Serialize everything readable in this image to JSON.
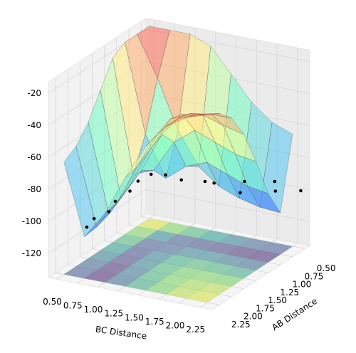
{
  "chart_data": {
    "type": "surface",
    "xlabel": "BC Distance",
    "ylabel": "AB Distance",
    "x": [
      0.5,
      0.75,
      1.0,
      1.25,
      1.5,
      1.75,
      2.0,
      2.25
    ],
    "y": [
      0.5,
      0.75,
      1.0,
      1.25,
      1.5,
      1.75,
      2.0,
      2.25
    ],
    "z": [
      [
        -15,
        -15,
        -15,
        -20,
        -35,
        -50,
        -60,
        -65
      ],
      [
        -15,
        -40,
        -70,
        -90,
        -100,
        -105,
        -108,
        -109
      ],
      [
        -15,
        -70,
        -95,
        -85,
        -80,
        -85,
        -90,
        -92
      ],
      [
        -20,
        -90,
        -85,
        -65,
        -55,
        -60,
        -65,
        -67
      ],
      [
        -35,
        -100,
        -80,
        -55,
        -40,
        -38,
        -42,
        -45
      ],
      [
        -50,
        -105,
        -85,
        -60,
        -38,
        -32,
        -30,
        -30
      ],
      [
        -60,
        -108,
        -90,
        -65,
        -42,
        -30,
        -25,
        -22
      ],
      [
        -65,
        -109,
        -92,
        -67,
        -45,
        -30,
        -22,
        -18
      ]
    ],
    "surface_colors": [
      "#3a3aff",
      "#46b4ff",
      "#78ffc0",
      "#ffff8c",
      "#ffa86a",
      "#ff4a4a"
    ],
    "contour_colors": [
      "#440154",
      "#3b528b",
      "#21918c",
      "#5ec962",
      "#fde725"
    ],
    "xlim": [
      0.4,
      2.4
    ],
    "ylim": [
      0.4,
      2.4
    ],
    "zlim": [
      -135,
      -13
    ],
    "xticks": [
      {
        "value": 0.5,
        "label": "0.50"
      },
      {
        "value": 0.75,
        "label": "0.75"
      },
      {
        "value": 1.0,
        "label": "1.00"
      },
      {
        "value": 1.25,
        "label": "1.25"
      },
      {
        "value": 1.5,
        "label": "1.50"
      },
      {
        "value": 1.75,
        "label": "1.75"
      },
      {
        "value": 2.0,
        "label": "2.00"
      },
      {
        "value": 2.25,
        "label": "2.25"
      }
    ],
    "yticks": [
      {
        "value": 0.5,
        "label": "0.50"
      },
      {
        "value": 0.75,
        "label": "0.75"
      },
      {
        "value": 1.0,
        "label": "1.00"
      },
      {
        "value": 1.25,
        "label": "1.25"
      },
      {
        "value": 1.5,
        "label": "1.50"
      },
      {
        "value": 1.75,
        "label": "1.75"
      },
      {
        "value": 2.0,
        "label": "2.00"
      },
      {
        "value": 2.25,
        "label": "2.25"
      }
    ],
    "zticks": [
      -120,
      -100,
      -80,
      -60,
      -40,
      -20
    ],
    "grid": true,
    "trajectory": {
      "color": "#000000",
      "x": [
        0.75,
        0.72,
        0.78,
        0.74,
        0.8,
        0.78,
        0.85,
        0.95,
        1.1,
        1.3,
        1.5,
        1.7,
        1.9,
        2.1,
        2.3,
        2.38
      ],
      "y": [
        2.2,
        2.0,
        1.8,
        1.6,
        1.4,
        1.2,
        1.05,
        0.92,
        0.85,
        0.7,
        0.85,
        0.65,
        0.9,
        0.6,
        0.95,
        0.55
      ],
      "z": [
        -104,
        -103,
        -102,
        -100,
        -97,
        -95,
        -93,
        -95,
        -98,
        -100,
        -96,
        -104,
        -90,
        -100,
        -85,
        -98
      ]
    }
  }
}
